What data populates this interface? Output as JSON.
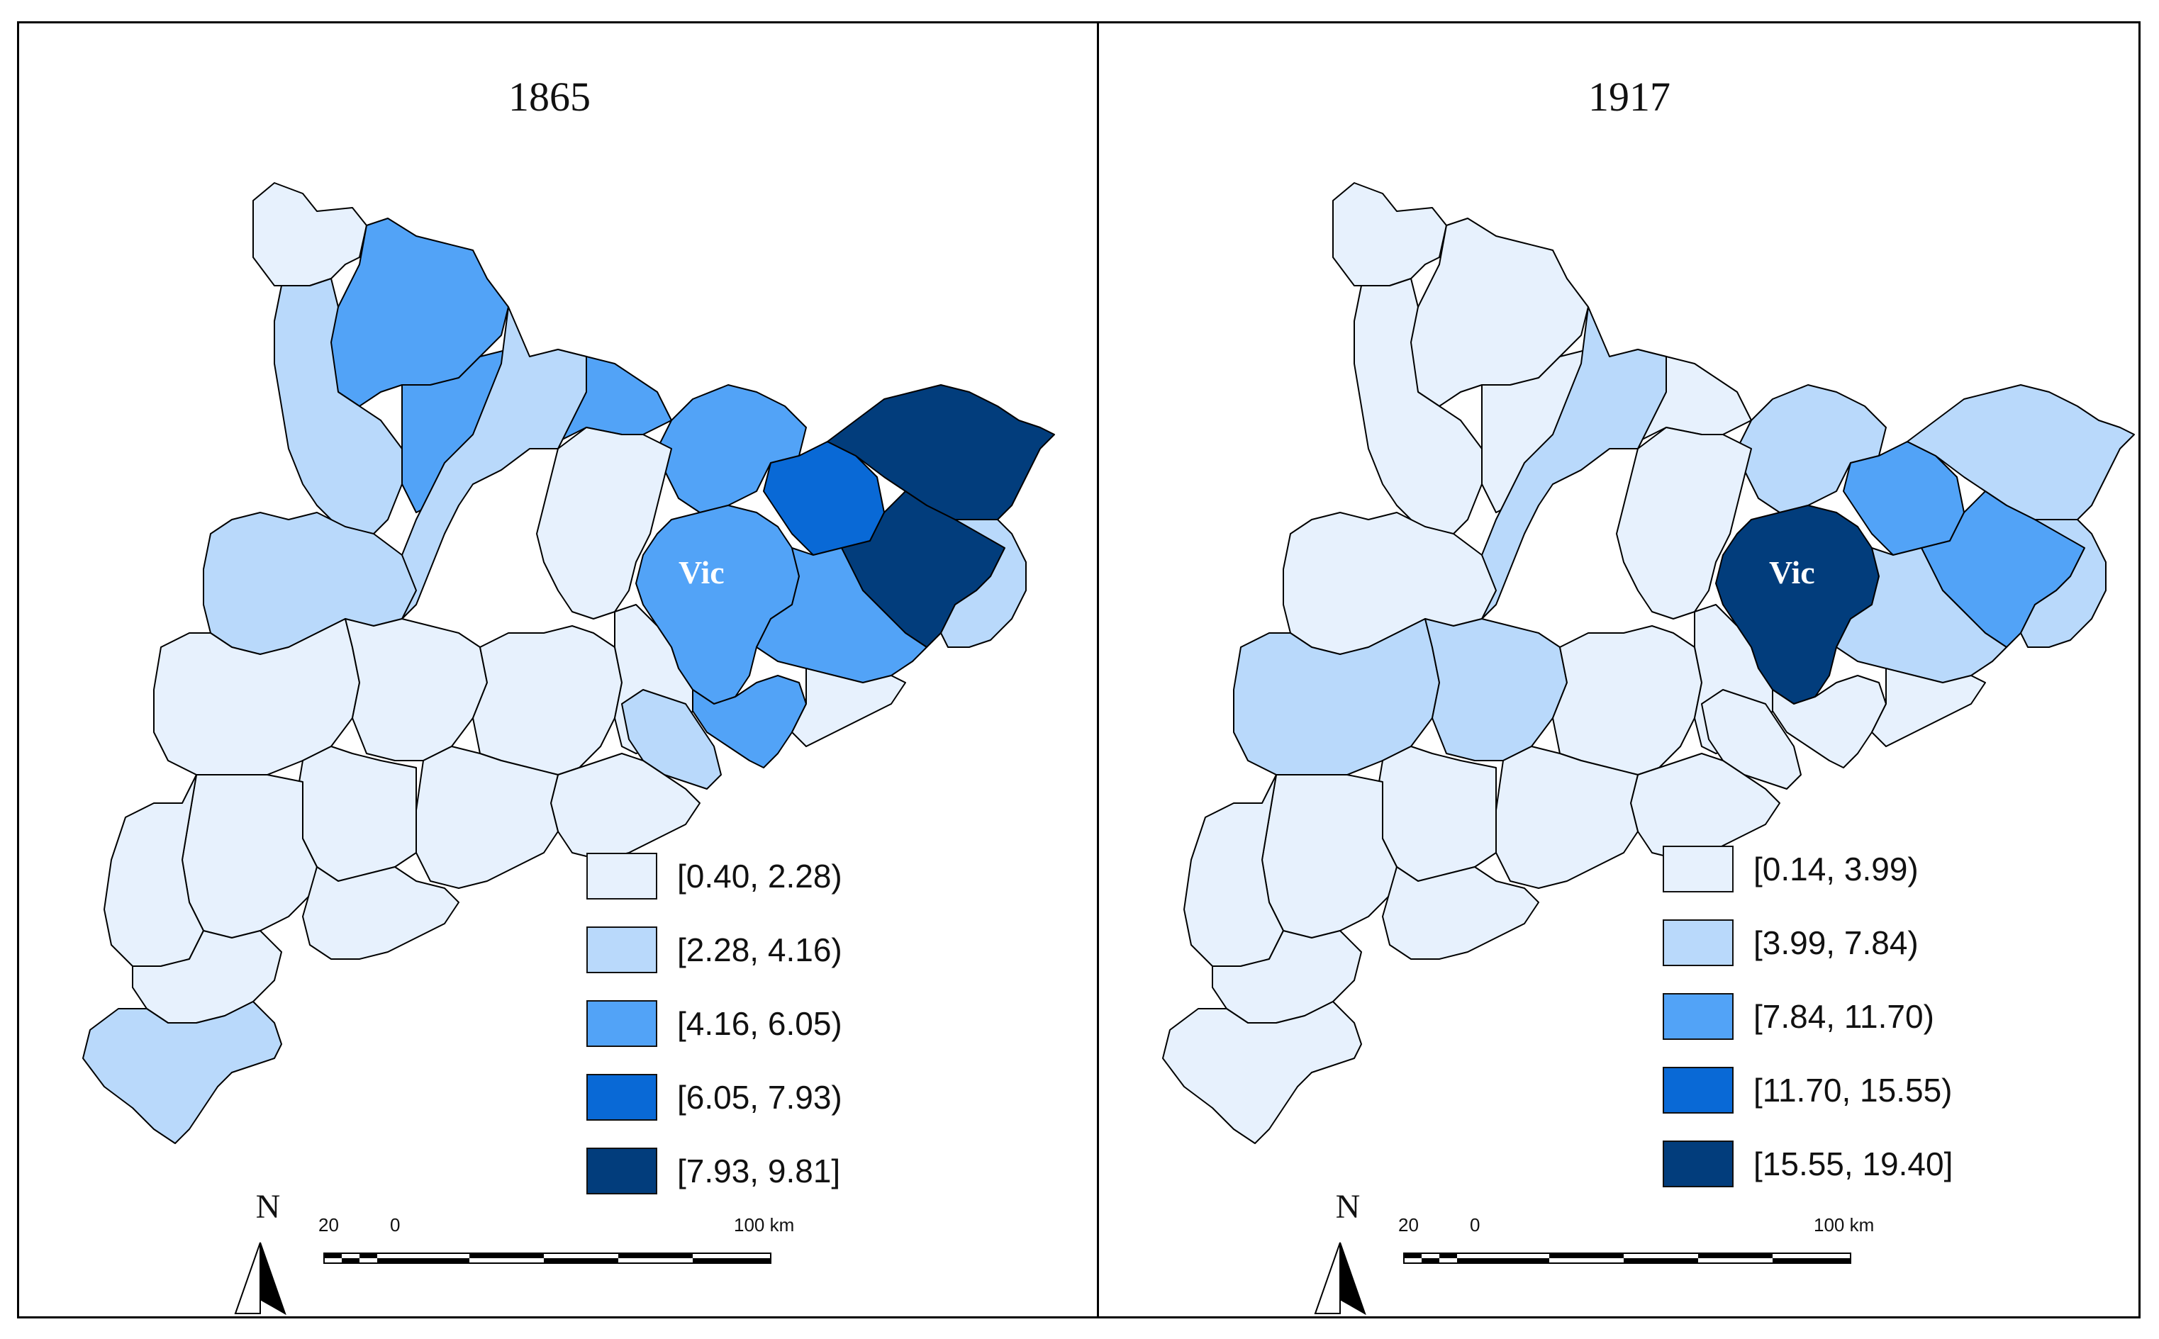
{
  "colors": {
    "border": "#000000",
    "background": "#ffffff",
    "vic_label": "#ffffff"
  },
  "panels": [
    {
      "year": "1865",
      "highlight_label": "Vic",
      "legend": [
        {
          "label": "[0.40, 2.28)",
          "color": "#e7f1fd"
        },
        {
          "label": "[2.28, 4.16)",
          "color": "#b9d9fb"
        },
        {
          "label": "[4.16, 6.05)",
          "color": "#52a3f7"
        },
        {
          "label": "[6.05, 7.93)",
          "color": "#0969d6"
        },
        {
          "label": "[7.93, 9.81]",
          "color": "#023d7c"
        }
      ],
      "north_label": "N",
      "scale": {
        "left_label": "20",
        "zero_label": "0",
        "right_label": "100 km"
      }
    },
    {
      "year": "1917",
      "highlight_label": "Vic",
      "legend": [
        {
          "label": "[0.14, 3.99)",
          "color": "#e7f1fd"
        },
        {
          "label": "[3.99, 7.84)",
          "color": "#b9d9fb"
        },
        {
          "label": "[7.84, 11.70)",
          "color": "#52a3f7"
        },
        {
          "label": "[11.70, 15.55)",
          "color": "#0969d6"
        },
        {
          "label": "[15.55, 19.40]",
          "color": "#023d7c"
        }
      ],
      "north_label": "N",
      "scale": {
        "left_label": "20",
        "zero_label": "0",
        "right_label": "100 km"
      }
    }
  ]
}
